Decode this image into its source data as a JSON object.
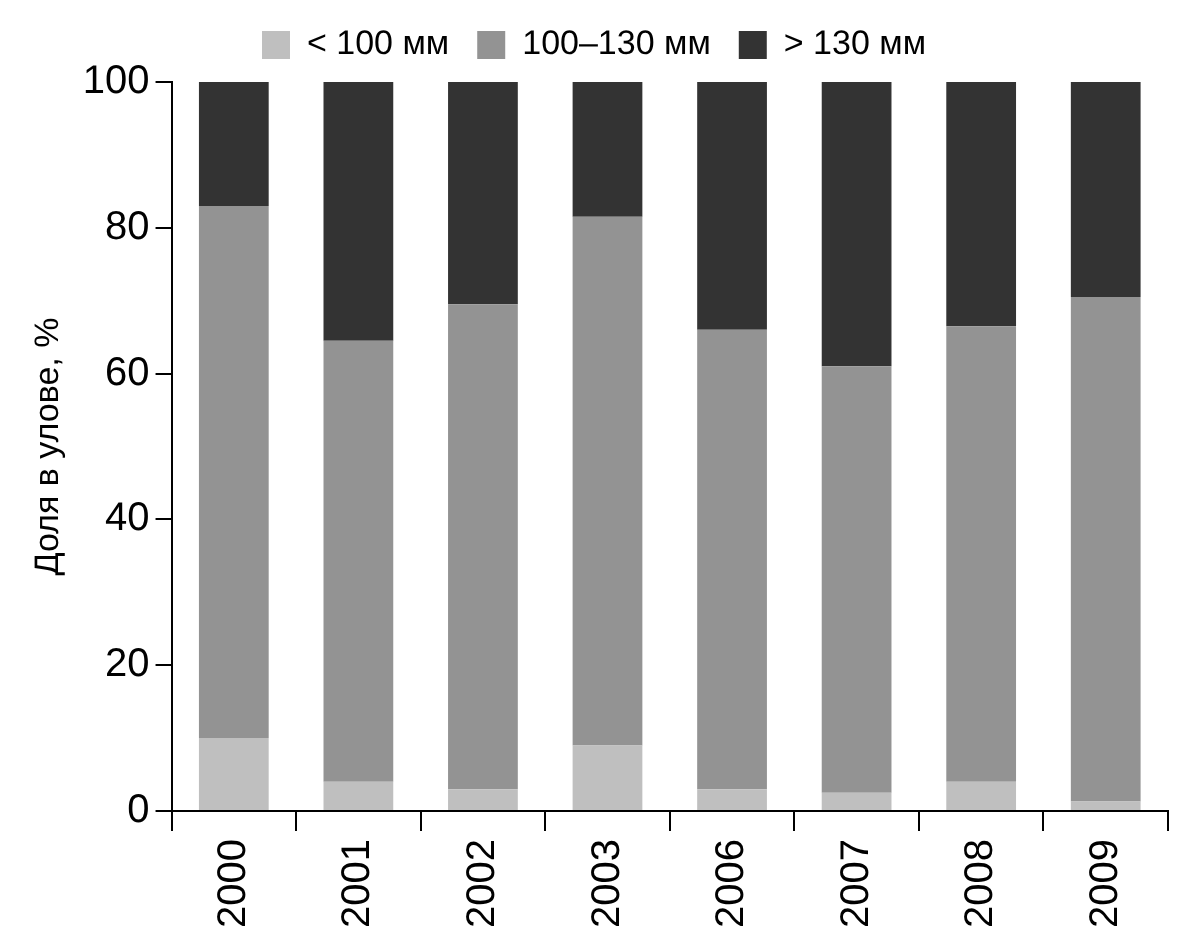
{
  "chart_data": {
    "type": "bar",
    "stacked": true,
    "ylabel": "Доля в улове, %",
    "categories": [
      "2000",
      "2001",
      "2002",
      "2003",
      "2006",
      "2007",
      "2008",
      "2009"
    ],
    "series": [
      {
        "name": "< 100 мм",
        "color": "#bfbfbf",
        "values": [
          10,
          4,
          3,
          9,
          3,
          2.5,
          4,
          1.3
        ]
      },
      {
        "name": "100–130 мм",
        "color": "#939393",
        "values": [
          73,
          60.5,
          66.5,
          72.5,
          63,
          58.5,
          62.5,
          69.2
        ]
      },
      {
        "name": "> 130 мм",
        "color": "#333333",
        "values": [
          17,
          35.5,
          30.5,
          18.5,
          34,
          39,
          33.5,
          29.5
        ]
      }
    ],
    "ylim": [
      0,
      100
    ],
    "yticks": [
      0,
      20,
      40,
      60,
      80,
      100
    ],
    "grid": false,
    "legend": "top"
  }
}
